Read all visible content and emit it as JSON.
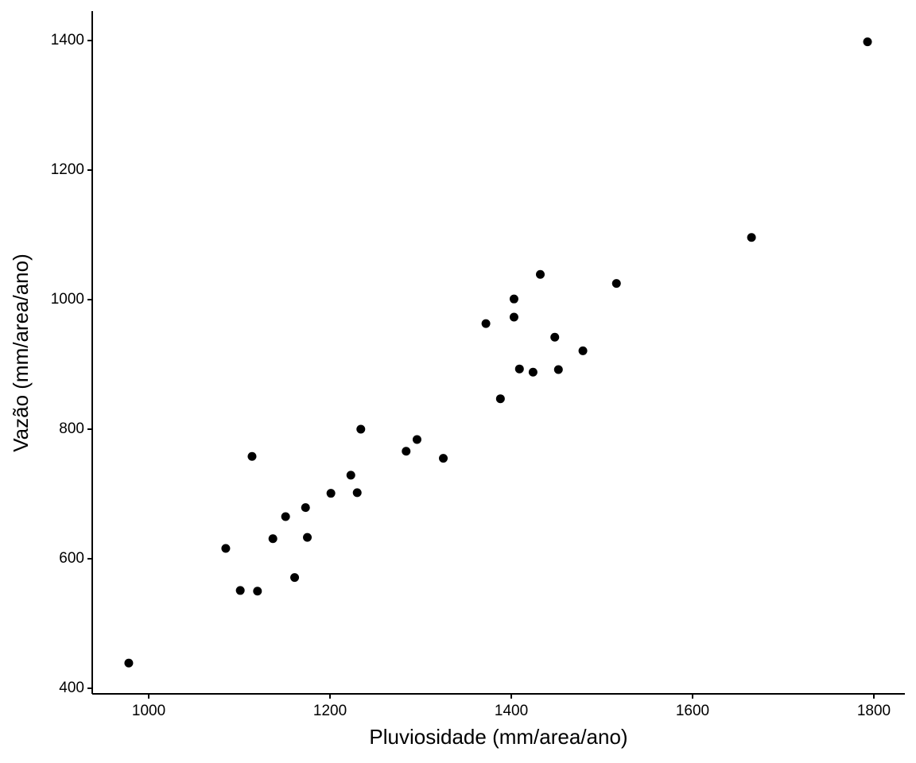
{
  "chart_data": {
    "type": "scatter",
    "xlabel": "Pluviosidade (mm/area/ano)",
    "ylabel": "Vazão (mm/area/ano)",
    "color": "#000000",
    "x": [
      978,
      1085,
      1101,
      1120,
      1114,
      1137,
      1151,
      1161,
      1173,
      1175,
      1201,
      1223,
      1230,
      1234,
      1284,
      1296,
      1325,
      1372,
      1388,
      1403,
      1403,
      1409,
      1424,
      1432,
      1448,
      1452,
      1479,
      1516,
      1665,
      1793
    ],
    "values": [
      439,
      616,
      551,
      550,
      758,
      631,
      665,
      571,
      679,
      633,
      701,
      729,
      702,
      800,
      766,
      784,
      755,
      963,
      847,
      1001,
      973,
      893,
      888,
      1039,
      942,
      892,
      921,
      1025,
      1096,
      1398
    ],
    "xlim": [
      937.7,
      1834.2
    ],
    "xticks": [
      1000,
      1200,
      1400,
      1600,
      1800
    ],
    "ylim": [
      391.4,
      1445.4
    ],
    "yticks": [
      400,
      600,
      800,
      1000,
      1200,
      1400
    ],
    "grid": false
  }
}
